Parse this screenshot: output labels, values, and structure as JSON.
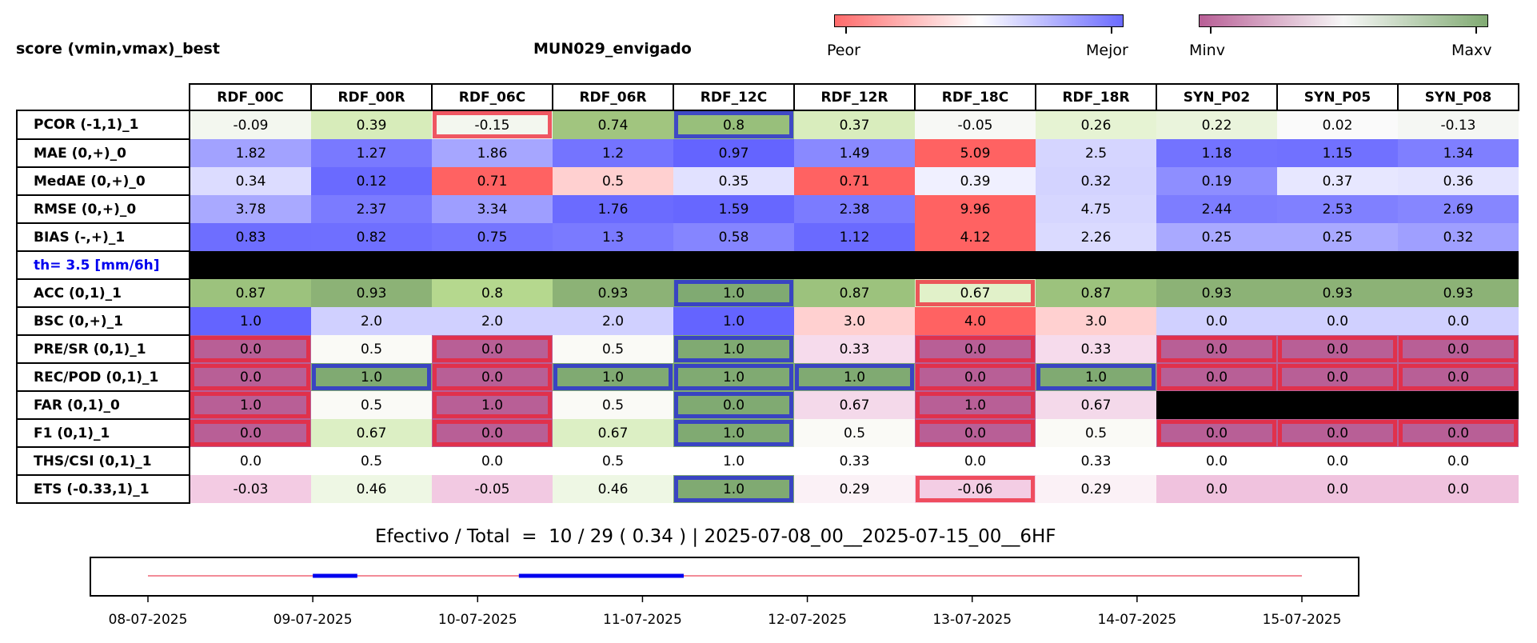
{
  "header": {
    "left_title": "score (vmin,vmax)_best",
    "station": "MUN029_envigado",
    "cbar1": {
      "low": "Peor",
      "high": "Mejor",
      "from": "#ff6b6b",
      "mid": "#ffffff",
      "to": "#6b6bff"
    },
    "cbar2": {
      "low": "Minv",
      "high": "Maxv",
      "from": "#b85f96",
      "mid": "#f7f7f7",
      "to": "#80aa72"
    }
  },
  "chart_data": {
    "type": "table",
    "columns": [
      "RDF_00C",
      "RDF_00R",
      "RDF_06C",
      "RDF_06R",
      "RDF_12C",
      "RDF_12R",
      "RDF_18C",
      "RDF_18R",
      "SYN_P02",
      "SYN_P05",
      "SYN_P08"
    ],
    "rows": [
      {
        "label": "PCOR (-1,1)_1",
        "values": [
          "-0.09",
          "0.39",
          "-0.15",
          "0.74",
          "0.8",
          "0.37",
          "-0.05",
          "0.26",
          "0.22",
          "0.02",
          "-0.13"
        ],
        "colors": [
          "#f3f7ef",
          "#d7ecba",
          "#f3f7ef",
          "#a1c57f",
          "#98bf7b",
          "#d9edbd",
          "#f7f8f5",
          "#e6f3d3",
          "#eaf4dc",
          "#fafafa",
          "#f5f7f3"
        ]
      },
      {
        "label": "MAE (0,+)_0",
        "values": [
          "1.82",
          "1.27",
          "1.86",
          "1.2",
          "0.97",
          "1.49",
          "5.09",
          "2.5",
          "1.18",
          "1.15",
          "1.34"
        ],
        "colors": [
          "#a2a2ff",
          "#7979ff",
          "#a6a6ff",
          "#7474ff",
          "#6464ff",
          "#8989ff",
          "#ff6262",
          "#d5d5ff",
          "#7373ff",
          "#7171ff",
          "#7f7fff"
        ]
      },
      {
        "label": "MedAE (0,+)_0",
        "values": [
          "0.34",
          "0.12",
          "0.71",
          "0.5",
          "0.35",
          "0.71",
          "0.39",
          "0.32",
          "0.19",
          "0.37",
          "0.36"
        ],
        "colors": [
          "#dcdcff",
          "#6a6aff",
          "#ff6262",
          "#ffd0d0",
          "#e1e1ff",
          "#ff6262",
          "#f0f0ff",
          "#d3d3ff",
          "#8e8eff",
          "#e7e7ff",
          "#e4e4ff"
        ]
      },
      {
        "label": "RMSE (0,+)_0",
        "values": [
          "3.78",
          "2.37",
          "3.34",
          "1.76",
          "1.59",
          "2.38",
          "9.96",
          "4.75",
          "2.44",
          "2.53",
          "2.69"
        ],
        "colors": [
          "#a9a9ff",
          "#7b7bff",
          "#9e9eff",
          "#6b6bff",
          "#6767ff",
          "#7b7bff",
          "#ff6262",
          "#d6d6ff",
          "#7d7dff",
          "#8080ff",
          "#8686ff"
        ]
      },
      {
        "label": "BIAS (-,+)_1",
        "values": [
          "0.83",
          "0.82",
          "0.75",
          "1.3",
          "0.58",
          "1.12",
          "4.12",
          "2.26",
          "0.25",
          "0.25",
          "0.32"
        ],
        "colors": [
          "#6e6eff",
          "#6f6fff",
          "#7575ff",
          "#7a7aff",
          "#8585ff",
          "#6a6aff",
          "#ff6262",
          "#dadaff",
          "#a9a9ff",
          "#a9a9ff",
          "#9f9fff"
        ]
      },
      {
        "label": "th= 3.5 [mm/6h]",
        "threshold": true
      },
      {
        "label": "ACC (0,1)_1",
        "values": [
          "0.87",
          "0.93",
          "0.8",
          "0.93",
          "1.0",
          "0.87",
          "0.67",
          "0.87",
          "0.93",
          "0.93",
          "0.93"
        ],
        "colors": [
          "#9cc27d",
          "#8cb276",
          "#b5d88e",
          "#8cb276",
          "#80aa72",
          "#9cc27d",
          "#e1f1c9",
          "#9cc27d",
          "#8cb276",
          "#8cb276",
          "#8cb276"
        ]
      },
      {
        "label": "BSC (0,+)_1",
        "values": [
          "1.0",
          "2.0",
          "2.0",
          "2.0",
          "1.0",
          "3.0",
          "4.0",
          "3.0",
          "0.0",
          "0.0",
          "0.0"
        ],
        "colors": [
          "#6464ff",
          "#d0d0ff",
          "#d0d0ff",
          "#d0d0ff",
          "#6464ff",
          "#ffd0d0",
          "#ff6262",
          "#ffd0d0",
          "#d0d0ff",
          "#d0d0ff",
          "#d0d0ff"
        ]
      },
      {
        "label": "PRE/SR (0,1)_1",
        "values": [
          "0.0",
          "0.5",
          "0.0",
          "0.5",
          "1.0",
          "0.33",
          "0.0",
          "0.33",
          "0.0",
          "0.0",
          "0.0"
        ],
        "colors": [
          "#b85f96",
          "#fafaf6",
          "#b85f96",
          "#fafaf6",
          "#80aa72",
          "#f6dbec",
          "#b85f96",
          "#f6dbec",
          "#b85f96",
          "#b85f96",
          "#b85f96"
        ]
      },
      {
        "label": "REC/POD (0,1)_1",
        "values": [
          "0.0",
          "1.0",
          "0.0",
          "1.0",
          "1.0",
          "1.0",
          "0.0",
          "1.0",
          "0.0",
          "0.0",
          "0.0"
        ],
        "colors": [
          "#b85f96",
          "#80aa72",
          "#b85f96",
          "#80aa72",
          "#80aa72",
          "#80aa72",
          "#b85f96",
          "#80aa72",
          "#b85f96",
          "#b85f96",
          "#b85f96"
        ]
      },
      {
        "label": "FAR (0,1)_0",
        "values": [
          "1.0",
          "0.5",
          "1.0",
          "0.5",
          "0.0",
          "0.67",
          "1.0",
          "0.67",
          null,
          null,
          null
        ],
        "colors": [
          "#b85f96",
          "#fafaf6",
          "#b85f96",
          "#fafaf6",
          "#80aa72",
          "#f4d9ea",
          "#b85f96",
          "#f4d9ea",
          "#000000",
          "#000000",
          "#000000"
        ]
      },
      {
        "label": "F1 (0,1)_1",
        "values": [
          "0.0",
          "0.67",
          "0.0",
          "0.67",
          "1.0",
          "0.5",
          "0.0",
          "0.5",
          "0.0",
          "0.0",
          "0.0"
        ],
        "colors": [
          "#b85f96",
          "#dcefc4",
          "#b85f96",
          "#dcefc4",
          "#80aa72",
          "#fafaf6",
          "#b85f96",
          "#fafaf6",
          "#b85f96",
          "#b85f96",
          "#b85f96"
        ]
      },
      {
        "label": "THS/CSI (0,1)_1",
        "values": [
          "0.0",
          "0.5",
          "0.0",
          "0.5",
          "1.0",
          "0.33",
          "0.0",
          "0.33",
          "0.0",
          "0.0",
          "0.0"
        ],
        "colors": [
          "#ffffff",
          "#ffffff",
          "#ffffff",
          "#ffffff",
          "#ffffff",
          "#ffffff",
          "#ffffff",
          "#ffffff",
          "#ffffff",
          "#ffffff",
          "#ffffff"
        ]
      },
      {
        "label": "ETS (-0.33,1)_1",
        "values": [
          "-0.03",
          "0.46",
          "-0.05",
          "0.46",
          "1.0",
          "0.29",
          "-0.06",
          "0.29",
          "0.0",
          "0.0",
          "0.0"
        ],
        "colors": [
          "#f3cbe3",
          "#eef7e4",
          "#f2c9e2",
          "#eef7e4",
          "#80aa72",
          "#fbf1f6",
          "#f3cde4",
          "#fbf1f6",
          "#f0c2de",
          "#f0c2de",
          "#f0c2de"
        ]
      }
    ],
    "highlights": [
      {
        "row": 0,
        "col": 2,
        "kind": "worst"
      },
      {
        "row": 0,
        "col": 4,
        "kind": "best"
      },
      {
        "row": 6,
        "col": 4,
        "kind": "best"
      },
      {
        "row": 6,
        "col": 6,
        "kind": "worst"
      },
      {
        "row": 8,
        "col": 0,
        "kind": "worst"
      },
      {
        "row": 8,
        "col": 2,
        "kind": "worst"
      },
      {
        "row": 8,
        "col": 4,
        "kind": "best"
      },
      {
        "row": 8,
        "col": 6,
        "kind": "worst"
      },
      {
        "row": 8,
        "col": 8,
        "kind": "worst"
      },
      {
        "row": 8,
        "col": 9,
        "kind": "worst"
      },
      {
        "row": 8,
        "col": 10,
        "kind": "worst"
      },
      {
        "row": 9,
        "col": 0,
        "kind": "worst"
      },
      {
        "row": 9,
        "col": 1,
        "kind": "best"
      },
      {
        "row": 9,
        "col": 2,
        "kind": "worst"
      },
      {
        "row": 9,
        "col": 3,
        "kind": "best"
      },
      {
        "row": 9,
        "col": 4,
        "kind": "best"
      },
      {
        "row": 9,
        "col": 5,
        "kind": "best"
      },
      {
        "row": 9,
        "col": 6,
        "kind": "worst"
      },
      {
        "row": 9,
        "col": 7,
        "kind": "best"
      },
      {
        "row": 9,
        "col": 8,
        "kind": "worst"
      },
      {
        "row": 9,
        "col": 9,
        "kind": "worst"
      },
      {
        "row": 9,
        "col": 10,
        "kind": "worst"
      },
      {
        "row": 10,
        "col": 0,
        "kind": "worst"
      },
      {
        "row": 10,
        "col": 2,
        "kind": "worst"
      },
      {
        "row": 10,
        "col": 4,
        "kind": "best"
      },
      {
        "row": 10,
        "col": 6,
        "kind": "worst"
      },
      {
        "row": 11,
        "col": 0,
        "kind": "worst"
      },
      {
        "row": 11,
        "col": 2,
        "kind": "worst"
      },
      {
        "row": 11,
        "col": 4,
        "kind": "best"
      },
      {
        "row": 11,
        "col": 6,
        "kind": "worst"
      },
      {
        "row": 11,
        "col": 8,
        "kind": "worst"
      },
      {
        "row": 11,
        "col": 9,
        "kind": "worst"
      },
      {
        "row": 11,
        "col": 10,
        "kind": "worst"
      },
      {
        "row": 13,
        "col": 4,
        "kind": "best"
      },
      {
        "row": 13,
        "col": 6,
        "kind": "worst"
      }
    ],
    "highlight_colors": {
      "worst": "#ee2233",
      "best": "#2222dd"
    }
  },
  "footer": {
    "label": "Efectivo / Total  =  10 / 29 ( 0.34 ) | 2025-07-08_00__2025-07-15_00__6HF"
  },
  "timeline": {
    "ticks": [
      "08-07-2025",
      "09-07-2025",
      "10-07-2025",
      "11-07-2025",
      "12-07-2025",
      "13-07-2025",
      "14-07-2025",
      "15-07-2025"
    ],
    "segments": [
      {
        "start": 1.0,
        "end": 1.27
      },
      {
        "start": 2.25,
        "end": 3.25
      }
    ],
    "line_color": "#ee6677",
    "segment_color": "#0000ee"
  }
}
